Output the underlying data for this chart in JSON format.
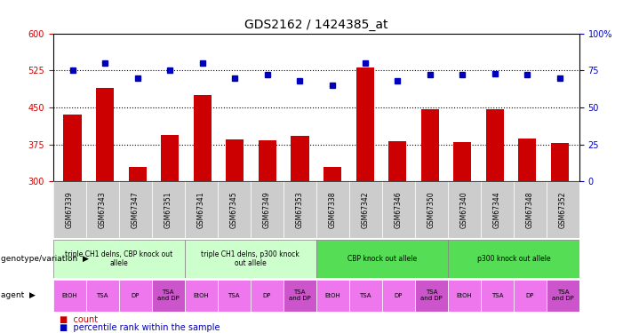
{
  "title": "GDS2162 / 1424385_at",
  "samples": [
    "GSM67339",
    "GSM67343",
    "GSM67347",
    "GSM67351",
    "GSM67341",
    "GSM67345",
    "GSM67349",
    "GSM67353",
    "GSM67338",
    "GSM67342",
    "GSM67346",
    "GSM67350",
    "GSM67340",
    "GSM67344",
    "GSM67348",
    "GSM67352"
  ],
  "counts": [
    435,
    490,
    330,
    395,
    475,
    385,
    383,
    393,
    330,
    530,
    382,
    447,
    380,
    447,
    387,
    378
  ],
  "percentiles": [
    75,
    80,
    70,
    75,
    80,
    70,
    72,
    68,
    65,
    80,
    68,
    72,
    72,
    73,
    72,
    70
  ],
  "ylim_left": [
    300,
    600
  ],
  "ylim_right": [
    0,
    100
  ],
  "yticks_left": [
    300,
    375,
    450,
    525,
    600
  ],
  "yticks_right": [
    0,
    25,
    50,
    75,
    100
  ],
  "bar_color": "#cc0000",
  "dot_color": "#0000bb",
  "genotype_groups": [
    {
      "label": "triple CH1 delns, CBP knock out\nallele",
      "start": 0,
      "end": 4,
      "color": "#ccffcc"
    },
    {
      "label": "triple CH1 delns, p300 knock\nout allele",
      "start": 4,
      "end": 8,
      "color": "#ccffcc"
    },
    {
      "label": "CBP knock out allele",
      "start": 8,
      "end": 12,
      "color": "#55dd55"
    },
    {
      "label": "p300 knock out allele",
      "start": 12,
      "end": 16,
      "color": "#55dd55"
    }
  ],
  "agent_labels": [
    "EtOH",
    "TSA",
    "DP",
    "TSA\nand DP",
    "EtOH",
    "TSA",
    "DP",
    "TSA\nand DP",
    "EtOH",
    "TSA",
    "DP",
    "TSA\nand DP",
    "EtOH",
    "TSA",
    "DP",
    "TSA\nand DP"
  ],
  "agent_bg_normal": "#ee77ee",
  "agent_bg_last": "#cc55cc",
  "left_tick_color": "#cc0000",
  "right_tick_color": "#0000bb",
  "grid_color": "#555555",
  "background_color": "#ffffff",
  "sample_bg_color": "#cccccc"
}
